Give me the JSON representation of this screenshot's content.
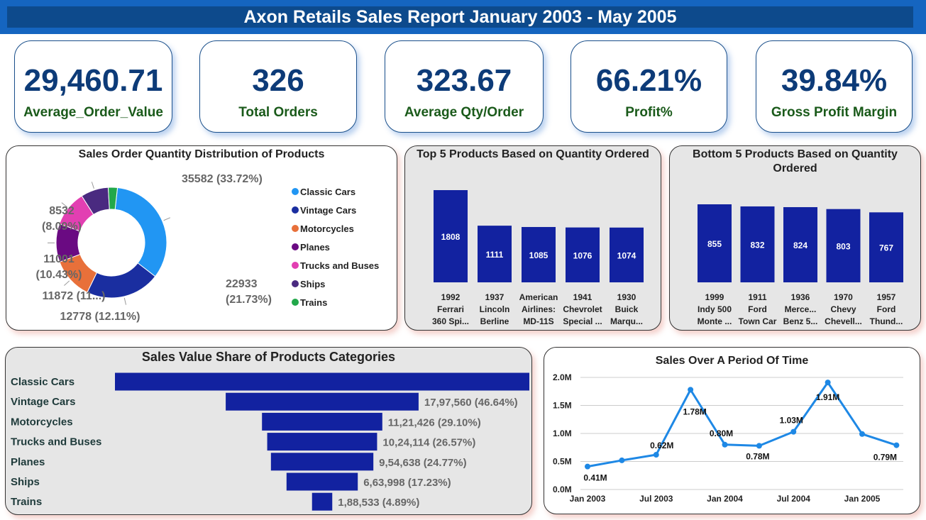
{
  "header": {
    "title": "Axon Retails Sales Report January 2003 - May 2005"
  },
  "kpis": [
    {
      "value": "29,460.71",
      "label": "Average_Order_Value"
    },
    {
      "value": "326",
      "label": "Total Orders"
    },
    {
      "value": "323.67",
      "label": "Average Qty/Order"
    },
    {
      "value": "66.21%",
      "label": "Profit%"
    },
    {
      "value": "39.84%",
      "label": "Gross Profit Margin"
    }
  ],
  "colors": {
    "bar": "#1222a0",
    "line": "#1e88e5",
    "kpi_value": "#0d3b78",
    "kpi_label": "#1a5a1a",
    "banner": "#0d4a8c"
  },
  "chart_data": [
    {
      "type": "pie",
      "title": "Sales Order Quantity Distribution of Products",
      "legend_position": "right",
      "slices": [
        {
          "label": "Classic Cars",
          "value": 35582,
          "display": "35582 (33.72%)",
          "color": "#2196f3"
        },
        {
          "label": "Vintage Cars",
          "value": 22933,
          "display_lines": [
            "22933",
            "(21.73%)"
          ],
          "color": "#1a2ea0"
        },
        {
          "label": "Motorcycles",
          "value": 12778,
          "display": "12778 (12.11%)",
          "color": "#e8703a"
        },
        {
          "label": "Planes",
          "value": 11872,
          "display": "11872 (11...)",
          "color": "#6a0a82"
        },
        {
          "label": "Trucks and Buses",
          "value": 11001,
          "display_lines": [
            "11001",
            "(10.43%)"
          ],
          "color": "#e23fb2"
        },
        {
          "label": "Ships",
          "value": 8532,
          "display_lines": [
            "8532",
            "(8.09%)"
          ],
          "color": "#4a2a80"
        },
        {
          "label": "Trains",
          "value": 2825,
          "display": "",
          "color": "#22a84a"
        }
      ]
    },
    {
      "type": "bar",
      "title": "Top 5 Products Based on Quantity Ordered",
      "categories": [
        [
          "1992",
          "Ferrari",
          "360 Spi..."
        ],
        [
          "1937",
          "Lincoln",
          "Berline"
        ],
        [
          "American",
          "Airlines:",
          "MD-11S"
        ],
        [
          "1941",
          "Chevrolet",
          "Special ..."
        ],
        [
          "1930",
          "Buick",
          "Marqu..."
        ]
      ],
      "values": [
        1808,
        1111,
        1085,
        1076,
        1074
      ],
      "labels": [
        "1808",
        "1111",
        "1085",
        "1076",
        "1074"
      ],
      "ylim": [
        0,
        1808
      ]
    },
    {
      "type": "bar",
      "title_lines": [
        "Bottom 5 Products Based on Quantity",
        "Ordered"
      ],
      "categories": [
        [
          "1999",
          "Indy 500",
          "Monte ..."
        ],
        [
          "1911",
          "Ford",
          "Town Car"
        ],
        [
          "1936",
          "Merce...",
          "Benz 5..."
        ],
        [
          "1970",
          "Chevy",
          "Chevell..."
        ],
        [
          "1957",
          "Ford",
          "Thund..."
        ]
      ],
      "values": [
        855,
        832,
        824,
        803,
        767
      ],
      "labels": [
        "855",
        "832",
        "824",
        "803",
        "767"
      ],
      "ylim": [
        0,
        855
      ]
    },
    {
      "type": "bar",
      "orientation": "funnel",
      "title": "Sales Value Share of Products Categories",
      "categories": [
        "Classic Cars",
        "Vintage Cars",
        "Motorcycles",
        "Trucks and Buses",
        "Planes",
        "Ships",
        "Trains"
      ],
      "values": [
        3862000,
        1797560,
        1121426,
        1024114,
        954638,
        663998,
        188533
      ],
      "labels": [
        "",
        "17,97,560 (46.64%)",
        "11,21,426 (29.10%)",
        "10,24,114 (26.57%)",
        "9,54,638 (24.77%)",
        "6,63,998 (17.23%)",
        "1,88,533 (4.89%)"
      ]
    },
    {
      "type": "line",
      "title": "Sales Over A Period Of Time",
      "x": [
        "2003-01",
        "2003-04",
        "2003-07",
        "2003-10",
        "2004-01",
        "2004-04",
        "2004-07",
        "2004-10",
        "2005-01",
        "2005-04"
      ],
      "y": [
        0.41,
        0.52,
        0.62,
        1.78,
        0.8,
        0.78,
        1.03,
        1.91,
        0.99,
        0.79
      ],
      "point_labels": [
        "0.41M",
        "",
        "0.62M",
        "1.78M",
        "0.80M",
        "0.78M",
        "1.03M",
        "1.91M",
        "",
        "0.79M"
      ],
      "xticks": [
        "Jan 2003",
        "Jul 2003",
        "Jan 2004",
        "Jul 2004",
        "Jan 2005"
      ],
      "yticks": [
        "0.0M",
        "0.5M",
        "1.0M",
        "1.5M",
        "2.0M"
      ],
      "ylim": [
        0,
        2.0
      ],
      "unit": "M",
      "grid": true
    }
  ]
}
